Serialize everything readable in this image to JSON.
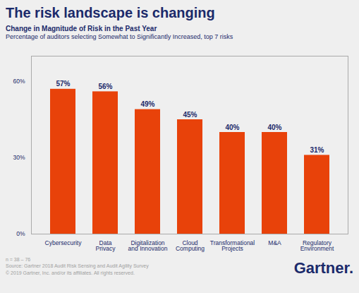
{
  "chart_data": {
    "type": "bar",
    "title": "The risk landscape is changing",
    "subtitle": [
      "Change in Magnitude of Risk in the Past Year",
      "Percentage of auditors selecting Somewhat to Significantly Increased, top 7 risks"
    ],
    "categories": [
      "Cybersecurity",
      "Data\nPrivacy",
      "Digitalization\nand Innovation",
      "Cloud\nComputing",
      "Transformational\nProjects",
      "M&A",
      "Regulatory\nEnvironment"
    ],
    "values": [
      57,
      56,
      49,
      45,
      40,
      40,
      31
    ],
    "value_labels": [
      "57%",
      "56%",
      "49%",
      "45%",
      "40%",
      "40%",
      "31%"
    ],
    "data_labels": true,
    "color": "#E8420A",
    "ylim": [
      0,
      70
    ],
    "yticks": [
      {
        "value": 0,
        "label": "0%"
      },
      {
        "value": 30,
        "label": "30%"
      },
      {
        "value": 60,
        "label": "60%"
      }
    ],
    "grid": false,
    "caption": "n = 38 – 76\nSource: Gartner 2018 Audit Risk Sensing and Audit Agility Survey\n© 2019 Gartner, Inc. and/or its affiliates. All rights reserved.",
    "annotations": [
      "Gartner."
    ]
  }
}
